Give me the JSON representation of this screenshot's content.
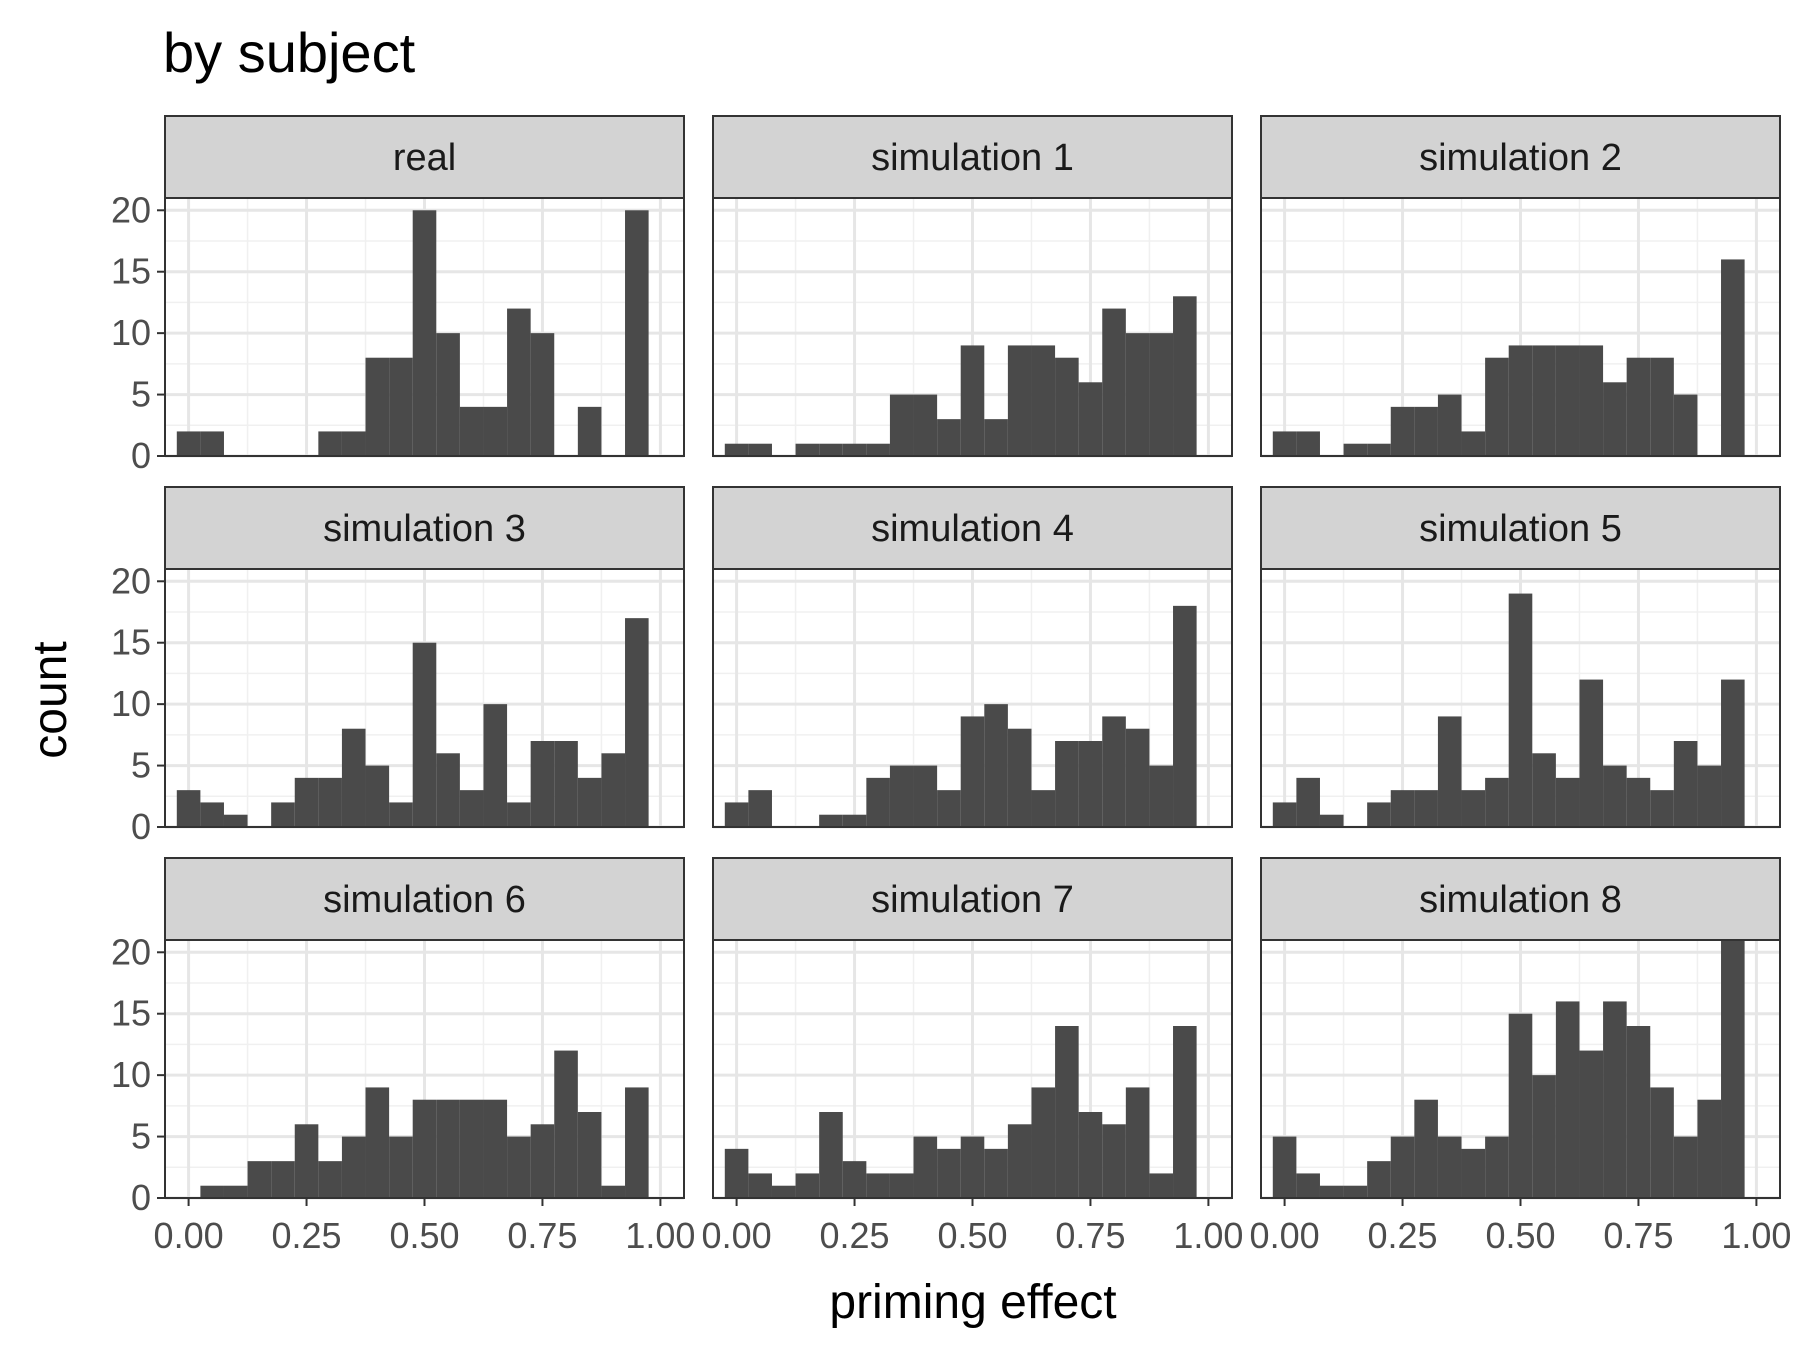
{
  "chart_data": {
    "type": "bar",
    "subtype": "faceted histogram",
    "title": "by subject",
    "xlabel": "priming effect",
    "ylabel": "count",
    "xlim": [
      -0.05,
      1.05
    ],
    "ylim": [
      0,
      21
    ],
    "x_ticks": [
      "0.00",
      "0.25",
      "0.50",
      "0.75",
      "1.00"
    ],
    "y_ticks": [
      "0",
      "5",
      "10",
      "15",
      "20"
    ],
    "grid": true,
    "bar_color": "#4a4a4a",
    "strip_fill": "#d3d3d3",
    "bin_centers": [
      0.0,
      0.05,
      0.1,
      0.15,
      0.2,
      0.25,
      0.3,
      0.35,
      0.4,
      0.45,
      0.5,
      0.55,
      0.6,
      0.65,
      0.7,
      0.75,
      0.8,
      0.85,
      0.9,
      0.95,
      1.0
    ],
    "bin_width": 0.05,
    "facets": [
      {
        "label": "real",
        "counts": [
          2,
          2,
          0,
          0,
          0,
          0,
          2,
          2,
          8,
          8,
          20,
          10,
          4,
          4,
          12,
          10,
          0,
          4,
          0,
          20,
          0
        ]
      },
      {
        "label": "simulation 1",
        "counts": [
          1,
          1,
          0,
          1,
          1,
          1,
          1,
          5,
          5,
          3,
          9,
          3,
          9,
          9,
          8,
          6,
          12,
          10,
          10,
          13,
          0
        ]
      },
      {
        "label": "simulation 2",
        "counts": [
          2,
          2,
          0,
          1,
          1,
          4,
          4,
          5,
          2,
          8,
          9,
          9,
          9,
          9,
          6,
          8,
          8,
          5,
          0,
          16,
          0
        ]
      },
      {
        "label": "simulation 3",
        "counts": [
          3,
          2,
          1,
          0,
          2,
          4,
          4,
          8,
          5,
          2,
          15,
          6,
          3,
          10,
          2,
          7,
          7,
          4,
          6,
          17,
          0
        ]
      },
      {
        "label": "simulation 4",
        "counts": [
          2,
          3,
          0,
          0,
          1,
          1,
          4,
          5,
          5,
          3,
          9,
          10,
          8,
          3,
          7,
          7,
          9,
          8,
          5,
          18,
          0
        ]
      },
      {
        "label": "simulation 5",
        "counts": [
          2,
          4,
          1,
          0,
          2,
          3,
          3,
          9,
          3,
          4,
          19,
          6,
          4,
          12,
          5,
          4,
          3,
          7,
          5,
          12,
          0
        ]
      },
      {
        "label": "simulation 6",
        "counts": [
          0,
          1,
          1,
          3,
          3,
          6,
          3,
          5,
          9,
          5,
          8,
          8,
          8,
          8,
          5,
          6,
          12,
          7,
          1,
          9,
          0
        ]
      },
      {
        "label": "simulation 7",
        "counts": [
          4,
          2,
          1,
          2,
          7,
          3,
          2,
          2,
          5,
          4,
          5,
          4,
          6,
          9,
          14,
          7,
          6,
          9,
          2,
          14,
          0
        ]
      },
      {
        "label": "simulation 8",
        "counts": [
          5,
          2,
          1,
          1,
          3,
          5,
          8,
          5,
          4,
          5,
          15,
          10,
          16,
          12,
          16,
          14,
          9,
          5,
          8,
          21,
          0
        ]
      }
    ]
  }
}
